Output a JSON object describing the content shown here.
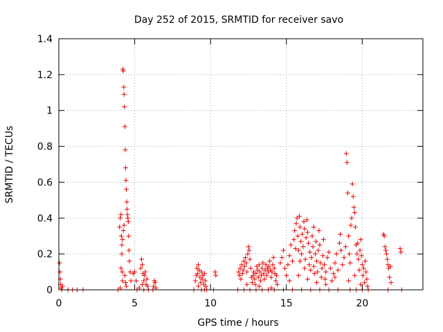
{
  "chart_data": {
    "type": "scatter",
    "title": "Day 252 of 2015, SRMTID for receiver savo",
    "xlabel": "GPS time / hours",
    "ylabel": "SRMTID / TECUs",
    "xlim": [
      0,
      24
    ],
    "ylim": [
      0,
      1.4
    ],
    "x_ticks": [
      0,
      5,
      10,
      15,
      20
    ],
    "x_tick_labels": [
      "0",
      "5",
      "10",
      "15",
      "20"
    ],
    "y_ticks": [
      0,
      0.2,
      0.4,
      0.6,
      0.8,
      1.0,
      1.2,
      1.4
    ],
    "y_tick_labels": [
      "0",
      "0.2",
      "0.4",
      "0.6",
      "0.8",
      "1",
      "1.2",
      "1.4"
    ],
    "grid": true,
    "marker": "plus",
    "series": [
      {
        "name": "savo",
        "color": "#e60000",
        "points": [
          [
            0.05,
            0.15
          ],
          [
            0.08,
            0.1
          ],
          [
            0.1,
            0.06
          ],
          [
            0.12,
            0.03
          ],
          [
            0.15,
            0.01
          ],
          [
            0.2,
            0.0
          ],
          [
            0.25,
            0.02
          ],
          [
            0.6,
            0.0
          ],
          [
            0.9,
            0.0
          ],
          [
            1.2,
            0.0
          ],
          [
            1.6,
            0.0
          ],
          [
            3.9,
            0.0
          ],
          [
            4.0,
            0.35
          ],
          [
            4.05,
            0.4
          ],
          [
            4.1,
            0.42
          ],
          [
            4.12,
            0.3
          ],
          [
            4.15,
            0.2
          ],
          [
            4.18,
            0.1
          ],
          [
            4.2,
            0.05
          ],
          [
            4.22,
            1.23
          ],
          [
            4.25,
            1.22
          ],
          [
            4.28,
            1.13
          ],
          [
            4.3,
            1.09
          ],
          [
            4.32,
            1.02
          ],
          [
            4.35,
            0.91
          ],
          [
            4.38,
            0.78
          ],
          [
            4.4,
            0.68
          ],
          [
            4.42,
            0.61
          ],
          [
            4.45,
            0.56
          ],
          [
            4.48,
            0.49
          ],
          [
            4.5,
            0.45
          ],
          [
            4.52,
            0.42
          ],
          [
            4.55,
            0.4
          ],
          [
            4.58,
            0.38
          ],
          [
            4.6,
            0.3
          ],
          [
            4.62,
            0.22
          ],
          [
            4.65,
            0.16
          ],
          [
            4.7,
            0.1
          ],
          [
            4.75,
            0.05
          ],
          [
            4.3,
            0.36
          ],
          [
            4.25,
            0.33
          ],
          [
            4.2,
            0.28
          ],
          [
            4.15,
            0.25
          ],
          [
            4.1,
            0.12
          ],
          [
            4.35,
            0.08
          ],
          [
            4.4,
            0.04
          ],
          [
            4.05,
            0.01
          ],
          [
            4.45,
            0.02
          ],
          [
            4.9,
            0.09
          ],
          [
            5.0,
            0.1
          ],
          [
            5.1,
            0.05
          ],
          [
            5.15,
            0.0
          ],
          [
            5.3,
            0.01
          ],
          [
            5.4,
            0.12
          ],
          [
            5.45,
            0.17
          ],
          [
            5.5,
            0.14
          ],
          [
            5.55,
            0.09
          ],
          [
            5.6,
            0.05
          ],
          [
            5.65,
            0.08
          ],
          [
            5.7,
            0.1
          ],
          [
            5.75,
            0.03
          ],
          [
            5.8,
            0.06
          ],
          [
            5.85,
            0.02
          ],
          [
            5.9,
            0.0
          ],
          [
            5.5,
            0.03
          ],
          [
            5.6,
            0.0
          ],
          [
            6.2,
            0.0
          ],
          [
            6.25,
            0.02
          ],
          [
            6.3,
            0.05
          ],
          [
            6.35,
            0.04
          ],
          [
            6.4,
            0.01
          ],
          [
            8.9,
            0.0
          ],
          [
            9.0,
            0.05
          ],
          [
            9.05,
            0.08
          ],
          [
            9.1,
            0.12
          ],
          [
            9.15,
            0.09
          ],
          [
            9.2,
            0.14
          ],
          [
            9.25,
            0.11
          ],
          [
            9.3,
            0.07
          ],
          [
            9.35,
            0.04
          ],
          [
            9.4,
            0.1
          ],
          [
            9.45,
            0.06
          ],
          [
            9.5,
            0.08
          ],
          [
            9.55,
            0.03
          ],
          [
            9.6,
            0.09
          ],
          [
            9.65,
            0.05
          ],
          [
            9.7,
            0.02
          ],
          [
            9.75,
            0.0
          ],
          [
            9.2,
            0.02
          ],
          [
            9.4,
            0.0
          ],
          [
            9.6,
            0.0
          ],
          [
            10.3,
            0.1
          ],
          [
            10.35,
            0.08
          ],
          [
            10.2,
            0.0
          ],
          [
            11.8,
            0.0
          ],
          [
            11.85,
            0.1
          ],
          [
            11.9,
            0.08
          ],
          [
            11.95,
            0.12
          ],
          [
            12.0,
            0.06
          ],
          [
            12.05,
            0.14
          ],
          [
            12.1,
            0.09
          ],
          [
            12.15,
            0.11
          ],
          [
            12.2,
            0.16
          ],
          [
            12.25,
            0.13
          ],
          [
            12.3,
            0.18
          ],
          [
            12.35,
            0.15
          ],
          [
            12.4,
            0.1
          ],
          [
            12.45,
            0.2
          ],
          [
            12.5,
            0.24
          ],
          [
            12.55,
            0.22
          ],
          [
            12.6,
            0.17
          ],
          [
            12.65,
            0.12
          ],
          [
            12.7,
            0.07
          ],
          [
            12.75,
            0.04
          ],
          [
            12.8,
            0.08
          ],
          [
            12.85,
            0.1
          ],
          [
            12.9,
            0.06
          ],
          [
            12.95,
            0.03
          ],
          [
            13.0,
            0.09
          ],
          [
            13.05,
            0.13
          ],
          [
            13.1,
            0.11
          ],
          [
            13.15,
            0.07
          ],
          [
            13.2,
            0.14
          ],
          [
            13.25,
            0.1
          ],
          [
            13.3,
            0.05
          ],
          [
            13.35,
            0.08
          ],
          [
            13.4,
            0.12
          ],
          [
            13.45,
            0.15
          ],
          [
            13.5,
            0.09
          ],
          [
            13.55,
            0.06
          ],
          [
            13.6,
            0.11
          ],
          [
            13.65,
            0.14
          ],
          [
            13.7,
            0.08
          ],
          [
            13.75,
            0.12
          ],
          [
            13.8,
            0.1
          ],
          [
            13.85,
            0.13
          ],
          [
            13.9,
            0.16
          ],
          [
            13.95,
            0.11
          ],
          [
            14.0,
            0.07
          ],
          [
            14.05,
            0.1
          ],
          [
            14.1,
            0.14
          ],
          [
            14.15,
            0.18
          ],
          [
            14.2,
            0.12
          ],
          [
            14.25,
            0.09
          ],
          [
            14.3,
            0.05
          ],
          [
            14.35,
            0.08
          ],
          [
            14.4,
            0.03
          ],
          [
            12.2,
            0.0
          ],
          [
            12.6,
            0.0
          ],
          [
            13.0,
            0.0
          ],
          [
            13.4,
            0.0
          ],
          [
            13.8,
            0.0
          ],
          [
            14.2,
            0.0
          ],
          [
            12.4,
            0.03
          ],
          [
            13.2,
            0.02
          ],
          [
            14.0,
            0.01
          ],
          [
            14.6,
            0.15
          ],
          [
            14.7,
            0.18
          ],
          [
            14.8,
            0.22
          ],
          [
            14.9,
            0.12
          ],
          [
            15.0,
            0.08
          ],
          [
            15.1,
            0.14
          ],
          [
            15.2,
            0.19
          ],
          [
            15.3,
            0.25
          ],
          [
            15.4,
            0.16
          ],
          [
            15.5,
            0.28
          ],
          [
            15.55,
            0.33
          ],
          [
            15.6,
            0.23
          ],
          [
            15.65,
            0.37
          ],
          [
            15.7,
            0.4
          ],
          [
            15.75,
            0.3
          ],
          [
            15.8,
            0.22
          ],
          [
            15.85,
            0.41
          ],
          [
            15.9,
            0.35
          ],
          [
            15.95,
            0.27
          ],
          [
            16.0,
            0.2
          ],
          [
            16.05,
            0.31
          ],
          [
            16.1,
            0.24
          ],
          [
            16.15,
            0.38
          ],
          [
            16.2,
            0.34
          ],
          [
            16.25,
            0.17
          ],
          [
            16.3,
            0.29
          ],
          [
            16.35,
            0.39
          ],
          [
            16.4,
            0.32
          ],
          [
            16.45,
            0.26
          ],
          [
            16.5,
            0.14
          ],
          [
            16.55,
            0.21
          ],
          [
            16.6,
            0.11
          ],
          [
            16.65,
            0.18
          ],
          [
            16.7,
            0.3
          ],
          [
            16.75,
            0.24
          ],
          [
            16.8,
            0.13
          ],
          [
            16.85,
            0.09
          ],
          [
            16.9,
            0.2
          ],
          [
            16.95,
            0.27
          ],
          [
            17.0,
            0.16
          ],
          [
            17.05,
            0.1
          ],
          [
            17.1,
            0.22
          ],
          [
            17.15,
            0.33
          ],
          [
            17.2,
            0.25
          ],
          [
            17.25,
            0.15
          ],
          [
            17.3,
            0.07
          ],
          [
            17.35,
            0.12
          ],
          [
            17.4,
            0.19
          ],
          [
            17.45,
            0.28
          ],
          [
            17.5,
            0.14
          ],
          [
            17.55,
            0.06
          ],
          [
            17.6,
            0.1
          ],
          [
            17.7,
            0.18
          ],
          [
            17.8,
            0.21
          ],
          [
            17.9,
            0.12
          ],
          [
            18.0,
            0.05
          ],
          [
            18.1,
            0.09
          ],
          [
            18.2,
            0.15
          ],
          [
            18.3,
            0.2
          ],
          [
            18.4,
            0.11
          ],
          [
            18.5,
            0.26
          ],
          [
            18.55,
            0.31
          ],
          [
            18.6,
            0.22
          ],
          [
            18.7,
            0.14
          ],
          [
            18.8,
            0.18
          ],
          [
            18.9,
            0.24
          ],
          [
            15.2,
            0.05
          ],
          [
            15.8,
            0.08
          ],
          [
            16.4,
            0.06
          ],
          [
            17.0,
            0.04
          ],
          [
            17.6,
            0.03
          ],
          [
            18.2,
            0.07
          ],
          [
            14.8,
            0.0
          ],
          [
            15.4,
            0.0
          ],
          [
            16.0,
            0.0
          ],
          [
            16.6,
            0.0
          ],
          [
            17.2,
            0.0
          ],
          [
            17.8,
            0.0
          ],
          [
            18.4,
            0.0
          ],
          [
            16.2,
            0.12
          ],
          [
            16.8,
            0.35
          ],
          [
            15.9,
            0.16
          ],
          [
            18.95,
            0.76
          ],
          [
            19.0,
            0.71
          ],
          [
            19.05,
            0.54
          ],
          [
            19.1,
            0.3
          ],
          [
            19.15,
            0.2
          ],
          [
            19.2,
            0.15
          ],
          [
            19.25,
            0.36
          ],
          [
            19.3,
            0.4
          ],
          [
            19.35,
            0.59
          ],
          [
            19.4,
            0.52
          ],
          [
            19.45,
            0.46
          ],
          [
            19.5,
            0.43
          ],
          [
            19.55,
            0.35
          ],
          [
            19.6,
            0.25
          ],
          [
            19.65,
            0.2
          ],
          [
            19.7,
            0.26
          ],
          [
            19.75,
            0.17
          ],
          [
            19.8,
            0.11
          ],
          [
            19.85,
            0.22
          ],
          [
            19.9,
            0.28
          ],
          [
            19.95,
            0.19
          ],
          [
            20.0,
            0.14
          ],
          [
            20.05,
            0.08
          ],
          [
            20.1,
            0.12
          ],
          [
            20.15,
            0.04
          ],
          [
            20.2,
            0.16
          ],
          [
            20.25,
            0.1
          ],
          [
            20.3,
            0.06
          ],
          [
            20.35,
            0.02
          ],
          [
            19.1,
            0.05
          ],
          [
            19.5,
            0.08
          ],
          [
            19.9,
            0.03
          ],
          [
            19.2,
            0.0
          ],
          [
            19.6,
            0.0
          ],
          [
            20.0,
            0.0
          ],
          [
            20.4,
            0.0
          ],
          [
            21.4,
            0.31
          ],
          [
            21.45,
            0.3
          ],
          [
            21.5,
            0.24
          ],
          [
            21.55,
            0.22
          ],
          [
            21.6,
            0.2
          ],
          [
            21.65,
            0.17
          ],
          [
            21.7,
            0.14
          ],
          [
            21.75,
            0.12
          ],
          [
            21.8,
            0.07
          ],
          [
            21.85,
            0.13
          ],
          [
            21.9,
            0.04
          ],
          [
            21.7,
            0.0
          ],
          [
            22.5,
            0.23
          ],
          [
            22.55,
            0.21
          ],
          [
            22.6,
            0.0
          ]
        ]
      }
    ]
  }
}
